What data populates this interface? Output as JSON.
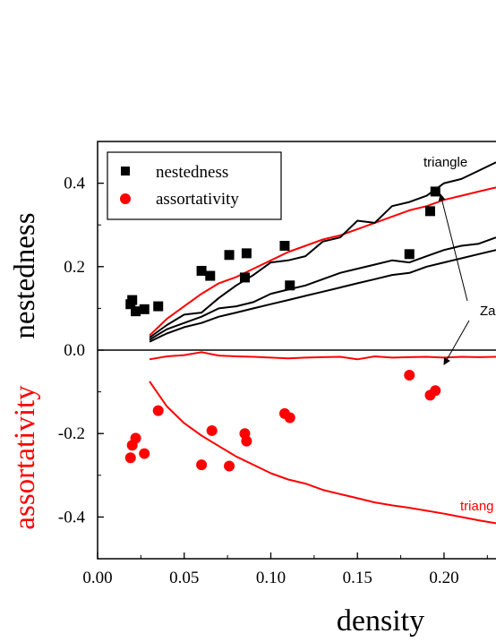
{
  "chart_data": {
    "type": "scatter",
    "xlabel": "density",
    "ylabel_top": "nestedness",
    "ylabel_bottom": "assortativity",
    "xlim": [
      0.0,
      0.23
    ],
    "ylim": [
      -0.5,
      0.5
    ],
    "x_ticks": [
      0.0,
      0.05,
      0.1,
      0.15,
      0.2
    ],
    "x_tick_labels": [
      "0.00",
      "0.05",
      "0.10",
      "0.15",
      "0.20"
    ],
    "y_ticks": [
      -0.4,
      -0.2,
      0.0,
      0.2,
      0.4
    ],
    "y_tick_labels": [
      "-0.4",
      "-0.2",
      "0.0",
      "0.2",
      "0.4"
    ],
    "legend": {
      "position": "top-left",
      "entries": [
        {
          "label": "nestedness",
          "marker": "square",
          "color": "#000000"
        },
        {
          "label": "assortativity",
          "marker": "circle",
          "color": "#ff0000"
        }
      ]
    },
    "annotations": {
      "triangle_top": "triangle",
      "triangle_bottom": "triang",
      "za": "Za"
    },
    "series": [
      {
        "name": "nestedness",
        "kind": "points",
        "marker": "square",
        "color": "#000000",
        "points": [
          [
            0.019,
            0.11
          ],
          [
            0.02,
            0.12
          ],
          [
            0.022,
            0.093
          ],
          [
            0.027,
            0.098
          ],
          [
            0.035,
            0.105
          ],
          [
            0.06,
            0.19
          ],
          [
            0.065,
            0.178
          ],
          [
            0.076,
            0.228
          ],
          [
            0.085,
            0.174
          ],
          [
            0.086,
            0.232
          ],
          [
            0.108,
            0.25
          ],
          [
            0.111,
            0.155
          ],
          [
            0.18,
            0.23
          ],
          [
            0.192,
            0.333
          ],
          [
            0.195,
            0.38
          ]
        ]
      },
      {
        "name": "assortativity",
        "kind": "points",
        "marker": "circle",
        "color": "#ff0000",
        "points": [
          [
            0.019,
            -0.258
          ],
          [
            0.02,
            -0.228
          ],
          [
            0.022,
            -0.211
          ],
          [
            0.027,
            -0.248
          ],
          [
            0.035,
            -0.145
          ],
          [
            0.06,
            -0.275
          ],
          [
            0.066,
            -0.193
          ],
          [
            0.076,
            -0.278
          ],
          [
            0.085,
            -0.2
          ],
          [
            0.086,
            -0.218
          ],
          [
            0.108,
            -0.152
          ],
          [
            0.111,
            -0.162
          ],
          [
            0.18,
            -0.06
          ],
          [
            0.192,
            -0.108
          ],
          [
            0.195,
            -0.097
          ]
        ]
      },
      {
        "kind": "line",
        "color": "#ff0000",
        "points": [
          [
            0.03,
            0.035
          ],
          [
            0.04,
            0.075
          ],
          [
            0.05,
            0.105
          ],
          [
            0.06,
            0.135
          ],
          [
            0.07,
            0.16
          ],
          [
            0.08,
            0.175
          ],
          [
            0.09,
            0.195
          ],
          [
            0.1,
            0.215
          ],
          [
            0.11,
            0.235
          ],
          [
            0.12,
            0.25
          ],
          [
            0.13,
            0.265
          ],
          [
            0.14,
            0.275
          ],
          [
            0.15,
            0.29
          ],
          [
            0.16,
            0.305
          ],
          [
            0.17,
            0.32
          ],
          [
            0.18,
            0.335
          ],
          [
            0.19,
            0.345
          ],
          [
            0.2,
            0.36
          ],
          [
            0.21,
            0.37
          ],
          [
            0.22,
            0.38
          ],
          [
            0.23,
            0.39
          ]
        ]
      },
      {
        "kind": "line",
        "color": "#000000",
        "points": [
          [
            0.03,
            0.03
          ],
          [
            0.04,
            0.06
          ],
          [
            0.05,
            0.085
          ],
          [
            0.06,
            0.09
          ],
          [
            0.07,
            0.125
          ],
          [
            0.08,
            0.155
          ],
          [
            0.09,
            0.18
          ],
          [
            0.1,
            0.21
          ],
          [
            0.11,
            0.215
          ],
          [
            0.12,
            0.225
          ],
          [
            0.13,
            0.26
          ],
          [
            0.14,
            0.27
          ],
          [
            0.15,
            0.31
          ],
          [
            0.16,
            0.305
          ],
          [
            0.17,
            0.345
          ],
          [
            0.18,
            0.355
          ],
          [
            0.19,
            0.37
          ],
          [
            0.2,
            0.4
          ],
          [
            0.21,
            0.41
          ],
          [
            0.22,
            0.43
          ],
          [
            0.23,
            0.45
          ]
        ]
      },
      {
        "kind": "line",
        "color": "#000000",
        "points": [
          [
            0.03,
            0.025
          ],
          [
            0.04,
            0.05
          ],
          [
            0.05,
            0.065
          ],
          [
            0.06,
            0.08
          ],
          [
            0.07,
            0.1
          ],
          [
            0.08,
            0.105
          ],
          [
            0.09,
            0.115
          ],
          [
            0.1,
            0.135
          ],
          [
            0.11,
            0.145
          ],
          [
            0.12,
            0.155
          ],
          [
            0.13,
            0.17
          ],
          [
            0.14,
            0.185
          ],
          [
            0.15,
            0.195
          ],
          [
            0.16,
            0.205
          ],
          [
            0.17,
            0.215
          ],
          [
            0.18,
            0.21
          ],
          [
            0.19,
            0.225
          ],
          [
            0.2,
            0.24
          ],
          [
            0.21,
            0.25
          ],
          [
            0.22,
            0.255
          ],
          [
            0.23,
            0.27
          ]
        ]
      },
      {
        "kind": "line",
        "color": "#000000",
        "points": [
          [
            0.03,
            0.02
          ],
          [
            0.04,
            0.04
          ],
          [
            0.05,
            0.055
          ],
          [
            0.06,
            0.065
          ],
          [
            0.07,
            0.08
          ],
          [
            0.08,
            0.09
          ],
          [
            0.09,
            0.1
          ],
          [
            0.1,
            0.11
          ],
          [
            0.11,
            0.12
          ],
          [
            0.12,
            0.13
          ],
          [
            0.13,
            0.14
          ],
          [
            0.14,
            0.15
          ],
          [
            0.15,
            0.16
          ],
          [
            0.16,
            0.17
          ],
          [
            0.17,
            0.18
          ],
          [
            0.18,
            0.185
          ],
          [
            0.19,
            0.2
          ],
          [
            0.2,
            0.21
          ],
          [
            0.21,
            0.22
          ],
          [
            0.22,
            0.23
          ],
          [
            0.23,
            0.24
          ]
        ]
      },
      {
        "kind": "line",
        "color": "#ff0000",
        "points": [
          [
            0.03,
            -0.022
          ],
          [
            0.04,
            -0.015
          ],
          [
            0.05,
            -0.012
          ],
          [
            0.06,
            -0.005
          ],
          [
            0.07,
            -0.013
          ],
          [
            0.08,
            -0.015
          ],
          [
            0.09,
            -0.016
          ],
          [
            0.1,
            -0.018
          ],
          [
            0.11,
            -0.02
          ],
          [
            0.12,
            -0.018
          ],
          [
            0.13,
            -0.017
          ],
          [
            0.14,
            -0.016
          ],
          [
            0.15,
            -0.022
          ],
          [
            0.16,
            -0.015
          ],
          [
            0.17,
            -0.018
          ],
          [
            0.18,
            -0.017
          ],
          [
            0.19,
            -0.016
          ],
          [
            0.2,
            -0.018
          ],
          [
            0.21,
            -0.016
          ],
          [
            0.22,
            -0.017
          ],
          [
            0.23,
            -0.016
          ]
        ]
      },
      {
        "kind": "line",
        "color": "#ff0000",
        "points": [
          [
            0.03,
            -0.075
          ],
          [
            0.04,
            -0.135
          ],
          [
            0.05,
            -0.175
          ],
          [
            0.06,
            -0.205
          ],
          [
            0.07,
            -0.23
          ],
          [
            0.08,
            -0.255
          ],
          [
            0.09,
            -0.275
          ],
          [
            0.1,
            -0.295
          ],
          [
            0.11,
            -0.31
          ],
          [
            0.12,
            -0.32
          ],
          [
            0.13,
            -0.335
          ],
          [
            0.14,
            -0.345
          ],
          [
            0.15,
            -0.355
          ],
          [
            0.16,
            -0.365
          ],
          [
            0.17,
            -0.372
          ],
          [
            0.18,
            -0.378
          ],
          [
            0.19,
            -0.385
          ],
          [
            0.2,
            -0.392
          ],
          [
            0.21,
            -0.4
          ],
          [
            0.22,
            -0.408
          ],
          [
            0.23,
            -0.415
          ]
        ]
      }
    ]
  }
}
